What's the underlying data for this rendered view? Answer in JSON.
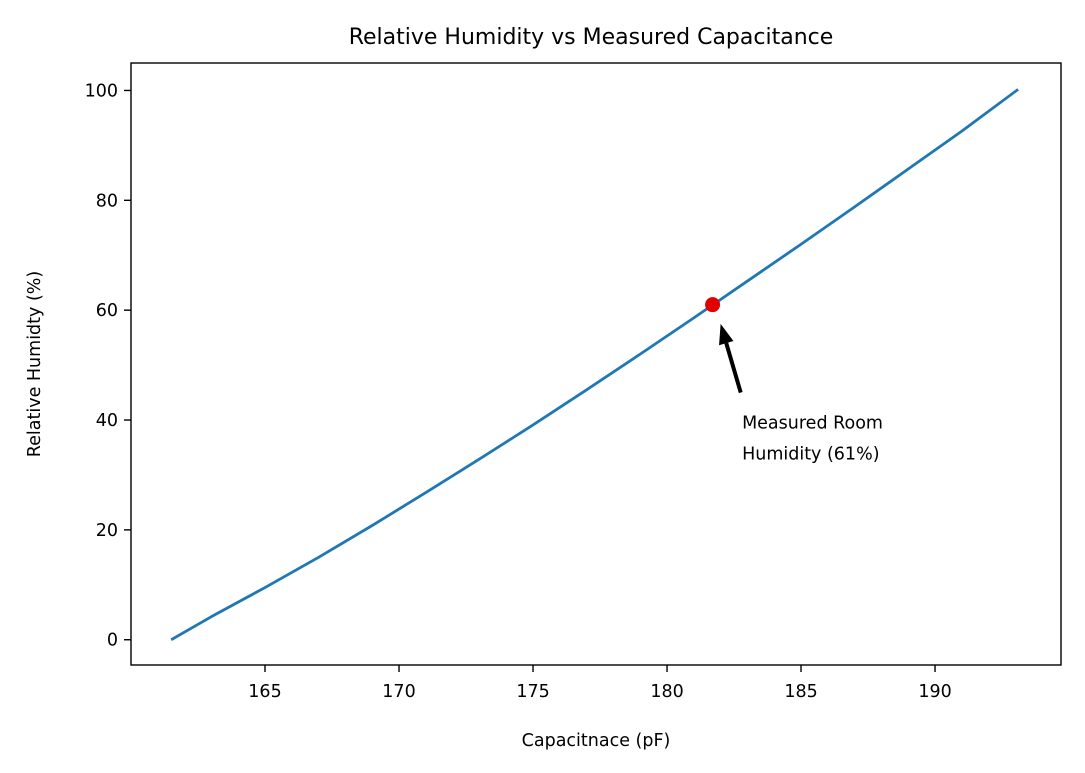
{
  "chart_data": {
    "type": "line",
    "title": "Relative Humidity vs Measured Capacitance",
    "xlabel": "Capacitnace (pF)",
    "ylabel": "Relative Humidty (%)",
    "xlim": [
      160.0,
      194.7
    ],
    "ylim": [
      -4.6,
      105
    ],
    "xticks": [
      165,
      170,
      175,
      180,
      185,
      190
    ],
    "yticks": [
      0,
      20,
      40,
      60,
      80,
      100
    ],
    "grid": false,
    "series": [
      {
        "color": "#1f77b4",
        "x": [
          161.5,
          163.0,
          165.0,
          167.0,
          169.0,
          171.0,
          173.0,
          175.0,
          177.0,
          179.0,
          181.0,
          183.0,
          185.0,
          187.0,
          189.0,
          191.0,
          193.1
        ],
        "y": [
          0.0,
          4.2,
          9.5,
          15.0,
          20.8,
          26.8,
          32.9,
          39.1,
          45.5,
          52.0,
          58.6,
          65.3,
          72.0,
          78.8,
          85.7,
          92.6,
          100.2
        ]
      }
    ],
    "highlight_point": {
      "x": 181.7,
      "y": 61,
      "color": "#e00000"
    },
    "annotation": {
      "lines": [
        "Measured Room",
        "Humidity (61%)"
      ],
      "text_x": 182.8,
      "text_y": 38.5,
      "arrow_tail": [
        182.75,
        45.0
      ],
      "arrow_head": [
        182.0,
        57.5
      ]
    }
  }
}
